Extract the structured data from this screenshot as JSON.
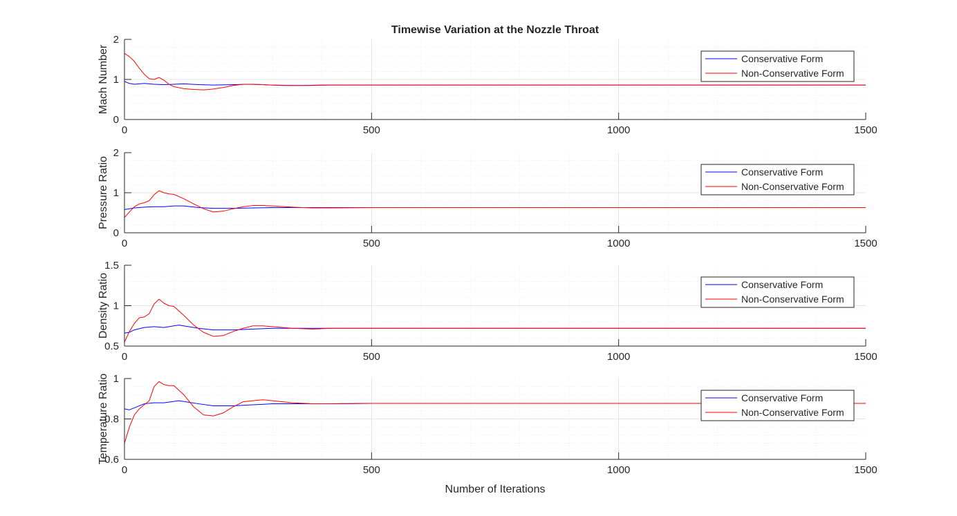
{
  "chart_data": {
    "type": "line",
    "title": "Timewise Variation at the Nozzle Throat",
    "xlabel": "Number of Iterations",
    "xlim": [
      0,
      1500
    ],
    "xticks": [
      0,
      500,
      1000,
      1500
    ],
    "xtick_labels": [
      "0",
      "500",
      "1000",
      "1500"
    ],
    "grid": true,
    "minor_grid": true,
    "legend_position": "top-right",
    "colors": {
      "Conservative Form": "#0000ff",
      "Non-Conservative Form": "#ff0000"
    },
    "subplots": [
      {
        "ylabel": "Mach Number",
        "ylim": [
          0,
          2
        ],
        "yticks": [
          0,
          1,
          2
        ],
        "ytick_labels": [
          "0",
          "1",
          "2"
        ],
        "legend": [
          "Conservative Form",
          "Non-Conservative Form"
        ],
        "series": [
          {
            "name": "Conservative Form",
            "x": [
              0,
              10,
              20,
              40,
              60,
              80,
              100,
              120,
              150,
              180,
              220,
              250,
              280,
              320,
              360,
              400,
              500,
              600,
              800,
              1000,
              1200,
              1500
            ],
            "y": [
              0.95,
              0.9,
              0.88,
              0.9,
              0.88,
              0.87,
              0.88,
              0.89,
              0.87,
              0.86,
              0.87,
              0.88,
              0.87,
              0.85,
              0.85,
              0.86,
              0.86,
              0.86,
              0.86,
              0.86,
              0.86,
              0.86
            ]
          },
          {
            "name": "Non-Conservative Form",
            "x": [
              0,
              10,
              20,
              30,
              40,
              50,
              60,
              70,
              80,
              90,
              100,
              120,
              140,
              160,
              180,
              200,
              220,
              240,
              260,
              280,
              300,
              340,
              380,
              420,
              500,
              600,
              800,
              1000,
              1200,
              1500
            ],
            "y": [
              1.65,
              1.57,
              1.45,
              1.28,
              1.13,
              1.02,
              1.0,
              1.05,
              0.98,
              0.88,
              0.82,
              0.77,
              0.75,
              0.74,
              0.76,
              0.8,
              0.85,
              0.88,
              0.88,
              0.87,
              0.86,
              0.85,
              0.85,
              0.86,
              0.86,
              0.86,
              0.86,
              0.86,
              0.86,
              0.86
            ]
          }
        ]
      },
      {
        "ylabel": "Pressure Ratio",
        "ylim": [
          0,
          2
        ],
        "yticks": [
          0,
          1,
          2
        ],
        "ytick_labels": [
          "0",
          "1",
          "2"
        ],
        "legend": [
          "Conservative Form",
          "Non-Conservative Form"
        ],
        "series": [
          {
            "name": "Conservative Form",
            "x": [
              0,
              10,
              20,
              40,
              60,
              80,
              100,
              120,
              150,
              180,
              220,
              260,
              300,
              350,
              400,
              500,
              600,
              800,
              1000,
              1200,
              1500
            ],
            "y": [
              0.58,
              0.6,
              0.62,
              0.64,
              0.65,
              0.65,
              0.67,
              0.67,
              0.63,
              0.61,
              0.61,
              0.62,
              0.63,
              0.63,
              0.63,
              0.63,
              0.63,
              0.63,
              0.63,
              0.63,
              0.63
            ]
          },
          {
            "name": "Non-Conservative Form",
            "x": [
              0,
              10,
              20,
              30,
              40,
              50,
              60,
              70,
              80,
              90,
              100,
              120,
              140,
              160,
              180,
              200,
              220,
              240,
              260,
              280,
              300,
              340,
              380,
              420,
              500,
              600,
              800,
              1000,
              1200,
              1500
            ],
            "y": [
              0.38,
              0.52,
              0.65,
              0.72,
              0.75,
              0.8,
              0.95,
              1.05,
              1.0,
              0.97,
              0.96,
              0.85,
              0.72,
              0.6,
              0.52,
              0.54,
              0.6,
              0.65,
              0.68,
              0.68,
              0.67,
              0.64,
              0.62,
              0.62,
              0.63,
              0.63,
              0.63,
              0.63,
              0.63,
              0.63
            ]
          }
        ]
      },
      {
        "ylabel": "Density Ratio",
        "ylim": [
          0.5,
          1.5
        ],
        "yticks": [
          0.5,
          1,
          1.5
        ],
        "ytick_labels": [
          "0.5",
          "1",
          "1.5"
        ],
        "legend": [
          "Conservative Form",
          "Non-Conservative Form"
        ],
        "series": [
          {
            "name": "Conservative Form",
            "x": [
              0,
              10,
              20,
              40,
              60,
              80,
              110,
              150,
              180,
              220,
              260,
              300,
              350,
              400,
              500,
              600,
              800,
              1000,
              1200,
              1500
            ],
            "y": [
              0.66,
              0.67,
              0.7,
              0.73,
              0.74,
              0.73,
              0.76,
              0.72,
              0.7,
              0.7,
              0.71,
              0.72,
              0.72,
              0.72,
              0.72,
              0.72,
              0.72,
              0.72,
              0.72,
              0.72
            ]
          },
          {
            "name": "Non-Conservative Form",
            "x": [
              0,
              10,
              20,
              30,
              40,
              50,
              60,
              70,
              80,
              90,
              100,
              120,
              140,
              160,
              180,
              200,
              220,
              240,
              260,
              280,
              300,
              340,
              380,
              420,
              500,
              600,
              800,
              1000,
              1200,
              1500
            ],
            "y": [
              0.55,
              0.68,
              0.78,
              0.85,
              0.86,
              0.9,
              1.02,
              1.08,
              1.03,
              1.0,
              0.99,
              0.88,
              0.76,
              0.67,
              0.62,
              0.63,
              0.68,
              0.72,
              0.75,
              0.75,
              0.74,
              0.72,
              0.71,
              0.72,
              0.72,
              0.72,
              0.72,
              0.72,
              0.72,
              0.72
            ]
          }
        ]
      },
      {
        "ylabel": "Temperature Ratio",
        "ylim": [
          0.6,
          1
        ],
        "yticks": [
          0.6,
          0.8,
          1
        ],
        "ytick_labels": [
          "0.6",
          "0.8",
          "1"
        ],
        "legend": [
          "Conservative Form",
          "Non-Conservative Form"
        ],
        "series": [
          {
            "name": "Conservative Form",
            "x": [
              0,
              10,
              20,
              40,
              60,
              80,
              110,
              150,
              180,
              220,
              260,
              300,
              350,
              400,
              500,
              600,
              800,
              1000,
              1200,
              1500
            ],
            "y": [
              0.85,
              0.845,
              0.855,
              0.875,
              0.88,
              0.88,
              0.89,
              0.875,
              0.865,
              0.865,
              0.87,
              0.875,
              0.875,
              0.875,
              0.877,
              0.877,
              0.877,
              0.877,
              0.877,
              0.877
            ]
          },
          {
            "name": "Non-Conservative Form",
            "x": [
              0,
              10,
              20,
              30,
              40,
              50,
              60,
              70,
              80,
              90,
              100,
              120,
              140,
              160,
              180,
              200,
              220,
              240,
              260,
              280,
              300,
              340,
              380,
              420,
              500,
              600,
              800,
              1000,
              1200,
              1500
            ],
            "y": [
              0.68,
              0.76,
              0.82,
              0.85,
              0.87,
              0.89,
              0.96,
              0.985,
              0.97,
              0.965,
              0.965,
              0.92,
              0.86,
              0.82,
              0.815,
              0.83,
              0.86,
              0.885,
              0.89,
              0.895,
              0.89,
              0.88,
              0.875,
              0.875,
              0.877,
              0.877,
              0.877,
              0.877,
              0.877,
              0.877
            ]
          }
        ]
      }
    ]
  }
}
